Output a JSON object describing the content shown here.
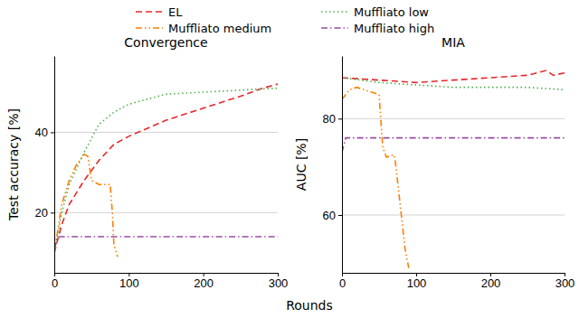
{
  "chart_data": [
    {
      "type": "line",
      "title": "Convergence",
      "ylabel": "Test accuracy [%]",
      "xlabel": "Rounds",
      "xlim": [
        0,
        300
      ],
      "xticks": [
        0,
        100,
        200,
        300
      ],
      "ylim": [
        5,
        59
      ],
      "yticks": [
        20,
        40
      ],
      "grid": true,
      "legend": "top",
      "series": [
        {
          "name": "EL",
          "color": "#e8282b",
          "line_style": "dashed",
          "x": [
            0,
            10,
            20,
            40,
            60,
            80,
            100,
            150,
            200,
            250,
            280,
            300
          ],
          "values": [
            10,
            17,
            22,
            28,
            33,
            37,
            39,
            43,
            46,
            49,
            51,
            52
          ]
        },
        {
          "name": "Muffliato low",
          "color": "#4daf4a",
          "line_style": "dotted",
          "x": [
            0,
            10,
            20,
            40,
            60,
            80,
            100,
            150,
            200,
            250,
            300
          ],
          "values": [
            10,
            20,
            27,
            35,
            42,
            45,
            47,
            49.5,
            50,
            50.5,
            51
          ]
        },
        {
          "name": "Muffliato medium",
          "color": "#ff7f00",
          "line_style": "dashdotdotted",
          "x": [
            0,
            10,
            20,
            30,
            40,
            45,
            50,
            60,
            70,
            75,
            78,
            80,
            85
          ],
          "values": [
            10,
            22,
            28,
            32,
            34.5,
            34,
            28,
            27,
            27,
            27,
            20,
            12,
            9
          ]
        },
        {
          "name": "Muffliato high",
          "color": "#984ea3",
          "line_style": "dashdotted",
          "x": [
            0,
            5,
            300
          ],
          "values": [
            11,
            14,
            14
          ]
        }
      ]
    },
    {
      "type": "line",
      "title": "MIA",
      "ylabel": "AUC [%]",
      "xlim": [
        0,
        300
      ],
      "xticks": [
        0,
        100,
        200,
        300
      ],
      "ylim": [
        48,
        93
      ],
      "yticks": [
        60,
        80
      ],
      "grid": true,
      "series": [
        {
          "color": "#e8282b",
          "line_style": "dashed",
          "x": [
            0,
            50,
            100,
            150,
            200,
            250,
            275,
            285,
            300
          ],
          "values": [
            88.5,
            88,
            87.5,
            88,
            88.5,
            89,
            90,
            89,
            89.5
          ]
        },
        {
          "color": "#4daf4a",
          "line_style": "dotted",
          "x": [
            0,
            50,
            100,
            150,
            200,
            250,
            300
          ],
          "values": [
            88.5,
            87.5,
            87,
            86.5,
            86.5,
            86.5,
            86
          ]
        },
        {
          "color": "#ff7f00",
          "line_style": "dashdotdotted",
          "x": [
            0,
            10,
            20,
            30,
            40,
            50,
            55,
            60,
            70,
            72,
            80,
            85,
            90
          ],
          "values": [
            84,
            86,
            86.5,
            86,
            85.5,
            85,
            74,
            72,
            72.5,
            71,
            60,
            53,
            49
          ]
        },
        {
          "color": "#984ea3",
          "line_style": "dashdotted",
          "x": [
            0,
            5,
            300
          ],
          "values": [
            73,
            76,
            76
          ]
        }
      ]
    }
  ]
}
